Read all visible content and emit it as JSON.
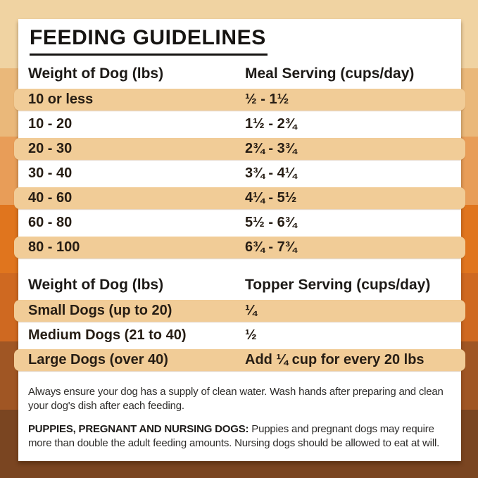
{
  "title": "FEEDING GUIDELINES",
  "palette": {
    "bands": [
      "#f0d3a2",
      "#eab87a",
      "#e89d58",
      "#e0751e",
      "#cf6921",
      "#a05624",
      "#7a4521"
    ],
    "row_highlight": "#f1cc97",
    "card_background": "#ffffff",
    "text_dark": "#261d14"
  },
  "meal_table": {
    "col1_header": "Weight of Dog (lbs)",
    "col2_header": "Meal Serving (cups/day)",
    "rows": [
      {
        "weight": "10 or less",
        "serving": "½ - 1½"
      },
      {
        "weight": "10 - 20",
        "serving": "1½ - 2¾"
      },
      {
        "weight": "20 - 30",
        "serving": "2¾ - 3¾"
      },
      {
        "weight": "30 - 40",
        "serving": "3¾ - 4¼"
      },
      {
        "weight": "40 - 60",
        "serving": "4¼ - 5½"
      },
      {
        "weight": "60 - 80",
        "serving": "5½ - 6¾"
      },
      {
        "weight": "80 - 100",
        "serving": "6¾ - 7¾"
      }
    ]
  },
  "topper_table": {
    "col1_header": "Weight of Dog (lbs)",
    "col2_header": "Topper Serving (cups/day)",
    "rows": [
      {
        "weight": "Small Dogs (up to 20)",
        "serving": "¼"
      },
      {
        "weight": "Medium Dogs (21 to 40)",
        "serving": "½"
      },
      {
        "weight": "Large Dogs (over 40)",
        "serving": "Add ¼ cup for every 20 lbs"
      }
    ]
  },
  "notes": {
    "water": "Always ensure your dog has a supply of clean water. Wash hands after preparing and clean your dog's dish after each feeding.",
    "puppies_label": "PUPPIES, PREGNANT AND NURSING DOGS:",
    "puppies_text": " Puppies and pregnant dogs may require more than double the adult feeding amounts. Nursing dogs should be allowed to eat at will."
  }
}
